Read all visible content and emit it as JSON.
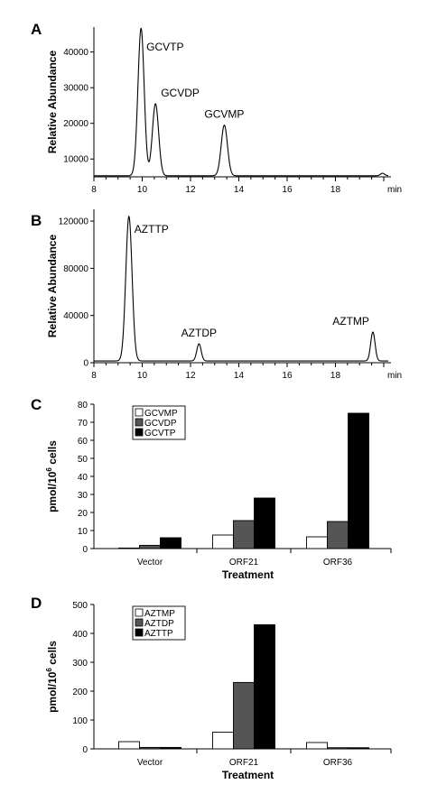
{
  "chart_data": [
    {
      "panel": "A",
      "type": "line",
      "xlabel": "",
      "ylabel": "Relative Abundance",
      "x_unit_label": "min",
      "x_ticks": [
        8,
        10,
        12,
        14,
        16,
        18
      ],
      "xlim": [
        8,
        20.3
      ],
      "y_ticks": [
        10000,
        20000,
        30000,
        40000
      ],
      "ylim": [
        5000,
        47000
      ],
      "baseline": 5300,
      "grid": false,
      "peaks": [
        {
          "name": "GCVTP",
          "rt": 9.95,
          "height": 45500
        },
        {
          "name": "GCVDP",
          "rt": 10.55,
          "height": 25500
        },
        {
          "name": "GCVMP",
          "rt": 13.4,
          "height": 19500
        }
      ],
      "minor_peaks": [
        {
          "rt": 10.0,
          "height": 6600
        },
        {
          "rt": 19.95,
          "height": 6000
        }
      ]
    },
    {
      "panel": "B",
      "type": "line",
      "xlabel": "",
      "ylabel": "Relative Abundance",
      "x_unit_label": "min",
      "x_ticks": [
        8,
        10,
        12,
        14,
        16,
        18
      ],
      "xlim": [
        8,
        20.3
      ],
      "y_ticks": [
        0,
        40000,
        80000,
        120000
      ],
      "ylim": [
        0,
        130000
      ],
      "baseline": 1500,
      "grid": false,
      "peaks": [
        {
          "name": "AZTTP",
          "rt": 9.45,
          "height": 124000
        },
        {
          "name": "AZTDP",
          "rt": 12.35,
          "height": 16000
        },
        {
          "name": "AZTMP",
          "rt": 19.55,
          "height": 26000
        }
      ]
    },
    {
      "panel": "C",
      "type": "bar",
      "xlabel": "Treatment",
      "ylabel": "pmol/10",
      "ylabel_superscript": "6",
      "ylabel_suffix": " cells",
      "categories": [
        "Vector",
        "ORF21",
        "ORF36"
      ],
      "ylim": [
        0,
        80
      ],
      "y_ticks": [
        0,
        10,
        20,
        30,
        40,
        50,
        60,
        70,
        80
      ],
      "legend_position": "top-left",
      "series": [
        {
          "name": "GCVMP",
          "values": [
            0.3,
            7.5,
            6.5
          ],
          "color": "#ffffff"
        },
        {
          "name": "GCVDP",
          "values": [
            1.8,
            15.5,
            15.0
          ],
          "color": "#555555"
        },
        {
          "name": "GCVTP",
          "values": [
            6.0,
            28.0,
            75.0
          ],
          "color": "#000000"
        }
      ]
    },
    {
      "panel": "D",
      "type": "bar",
      "xlabel": "Treatment",
      "ylabel": "pmol/10",
      "ylabel_superscript": "6",
      "ylabel_suffix": " cells",
      "categories": [
        "Vector",
        "ORF21",
        "ORF36"
      ],
      "ylim": [
        0,
        500
      ],
      "y_ticks": [
        0,
        100,
        200,
        300,
        400,
        500
      ],
      "legend_position": "top-left",
      "series": [
        {
          "name": "AZTMP",
          "values": [
            25,
            58,
            22
          ],
          "color": "#ffffff"
        },
        {
          "name": "AZTDP",
          "values": [
            5,
            230,
            4
          ],
          "color": "#555555"
        },
        {
          "name": "AZTTP",
          "values": [
            5,
            430,
            4
          ],
          "color": "#000000"
        }
      ]
    }
  ]
}
